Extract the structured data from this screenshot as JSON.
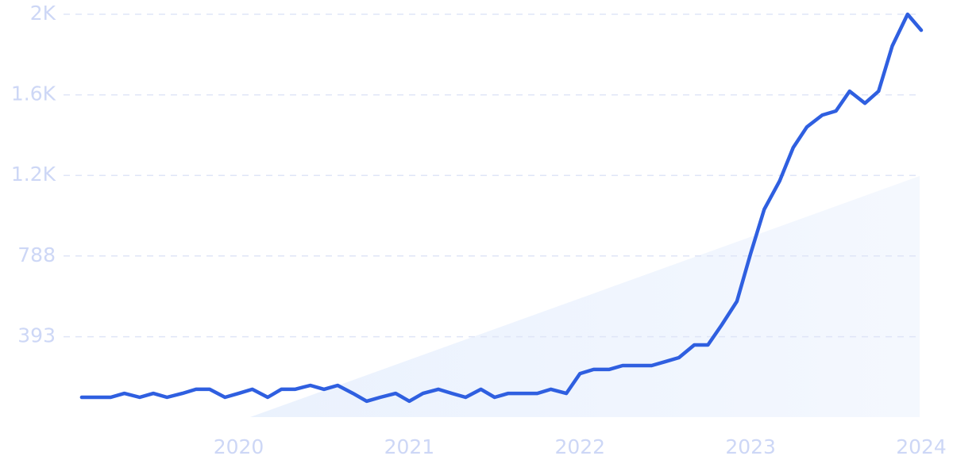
{
  "chart_data": {
    "type": "line",
    "x": [
      2019.08,
      2019.17,
      2019.25,
      2019.33,
      2019.42,
      2019.5,
      2019.58,
      2019.67,
      2019.75,
      2019.83,
      2019.92,
      2020.0,
      2020.08,
      2020.17,
      2020.25,
      2020.33,
      2020.42,
      2020.5,
      2020.58,
      2020.67,
      2020.75,
      2020.83,
      2020.92,
      2021.0,
      2021.08,
      2021.17,
      2021.25,
      2021.33,
      2021.42,
      2021.5,
      2021.58,
      2021.67,
      2021.75,
      2021.83,
      2021.92,
      2022.0,
      2022.08,
      2022.17,
      2022.25,
      2022.33,
      2022.42,
      2022.5,
      2022.58,
      2022.67,
      2022.75,
      2022.83,
      2022.92,
      2023.0,
      2023.08,
      2023.17,
      2023.25,
      2023.33,
      2023.42,
      2023.5,
      2023.58,
      2023.67,
      2023.75,
      2023.83,
      2023.92,
      2024.0
    ],
    "series": [
      {
        "color": "#2f5fe0",
        "values": [
          97,
          97,
          97,
          116,
          97,
          116,
          97,
          116,
          136,
          136,
          97,
          116,
          136,
          97,
          136,
          136,
          155,
          136,
          155,
          116,
          78,
          97,
          116,
          78,
          116,
          136,
          116,
          97,
          136,
          97,
          116,
          116,
          116,
          136,
          116,
          213,
          233,
          233,
          252,
          252,
          252,
          271,
          291,
          353,
          353,
          450,
          566,
          799,
          1016,
          1155,
          1318,
          1419,
          1477,
          1497,
          1594,
          1535,
          1594,
          1815,
          1970,
          1892
        ]
      }
    ],
    "xlim": [
      2019.09,
      2024.0
    ],
    "xticks": [
      2020,
      2021,
      2022,
      2023,
      2024
    ],
    "ylim": [
      0,
      1970
    ],
    "yticks": [
      393,
      788,
      {
        "value": 1182,
        "label": "1.2K"
      },
      {
        "value": 1576,
        "label": "1.6K"
      },
      {
        "value": 1970,
        "label": "2K"
      }
    ],
    "grid": true
  }
}
